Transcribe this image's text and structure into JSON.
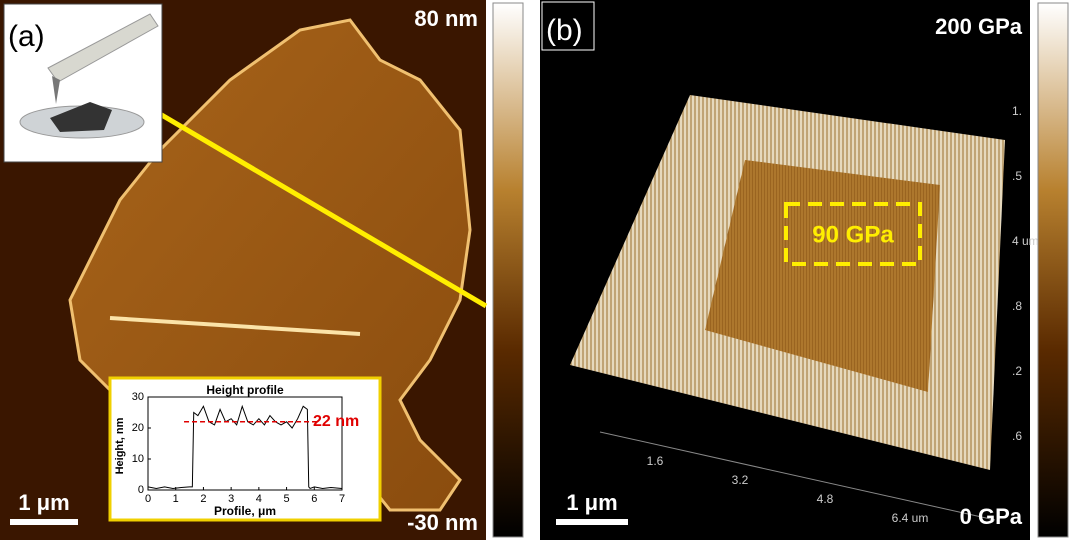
{
  "panels": {
    "a": {
      "label": "(a)",
      "scale_max": "80 nm",
      "scale_min": "-30 nm",
      "scale_bar": "1 μm"
    },
    "b": {
      "label": "(b)",
      "scale_max": "200 GPa",
      "scale_min": "0 GPa",
      "scale_bar": "1 μm",
      "region_label": "90 GPa",
      "x_axis_ticks": [
        "1.6",
        "3.2",
        "4.8",
        "6.4 um"
      ],
      "side_ticks": [
        "1.",
        ".5",
        "4 um",
        ".8",
        ".2",
        ".6"
      ]
    }
  },
  "chart_data": {
    "type": "line",
    "title": "Height profile",
    "xlabel": "Profile, μm",
    "ylabel": "Height, nm",
    "x": [
      0,
      0.3,
      0.6,
      0.9,
      1.2,
      1.5,
      1.6,
      1.65,
      1.8,
      2.0,
      2.2,
      2.4,
      2.6,
      2.8,
      3.0,
      3.2,
      3.4,
      3.6,
      3.8,
      4.0,
      4.2,
      4.4,
      4.6,
      4.8,
      5.0,
      5.2,
      5.4,
      5.6,
      5.75,
      5.8,
      5.85,
      6.0,
      6.3,
      6.6,
      7.0
    ],
    "series": [
      {
        "name": "Height",
        "color": "#000000",
        "values": [
          1,
          0.5,
          1,
          0.5,
          0.8,
          1,
          1,
          25,
          24,
          27,
          22,
          21,
          26,
          22,
          23,
          21,
          27,
          22,
          21,
          23,
          21,
          24,
          22,
          21,
          22,
          20,
          23,
          27,
          26,
          1,
          0.5,
          1,
          0.5,
          0.8,
          0.5
        ]
      }
    ],
    "xlim": [
      0,
      7
    ],
    "xticks": [
      0,
      1,
      2,
      3,
      4,
      5,
      6,
      7
    ],
    "ylim": [
      0,
      30
    ],
    "yticks": [
      0,
      10,
      20,
      30
    ],
    "annotation": {
      "text": "22 nm",
      "value": 22,
      "color": "#e00000"
    }
  }
}
